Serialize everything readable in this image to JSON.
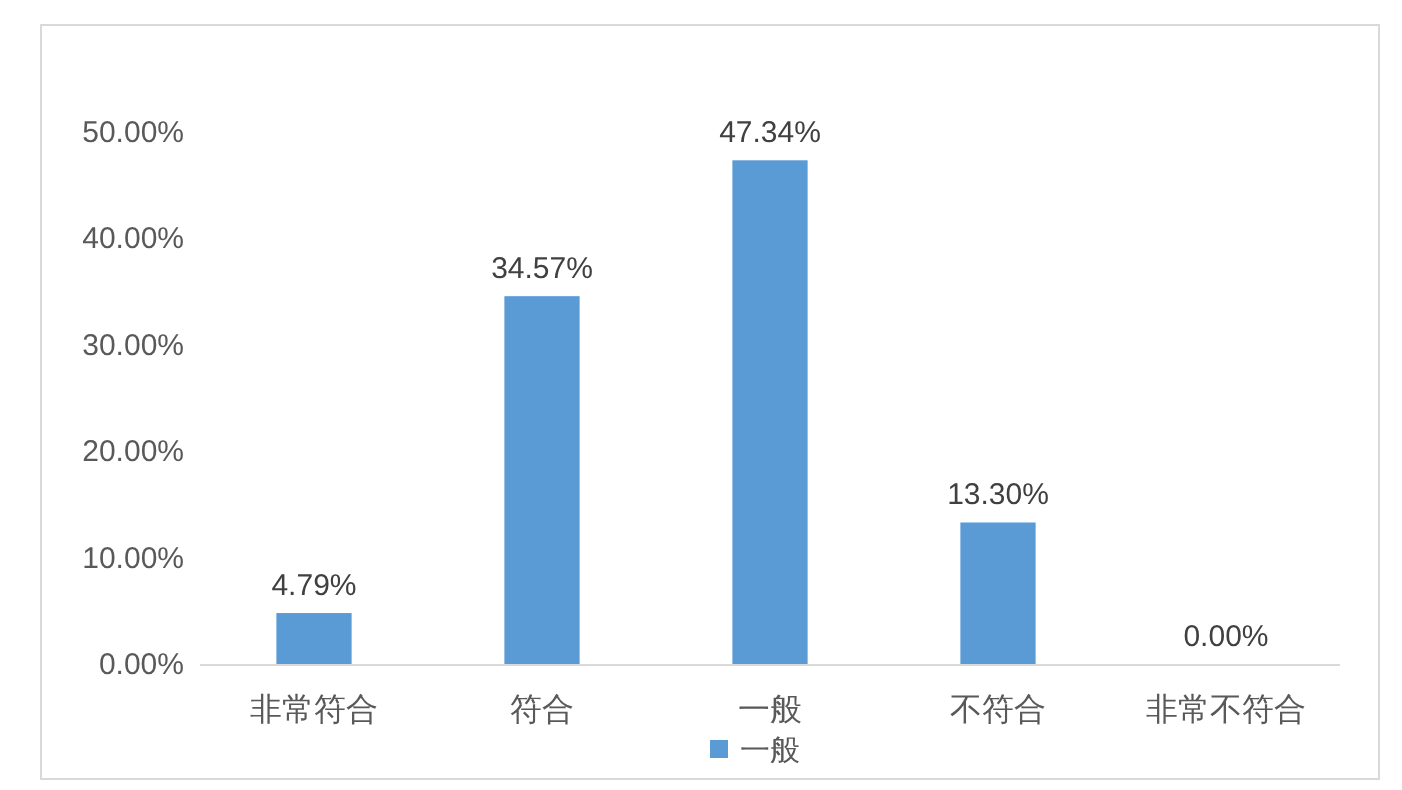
{
  "chart_data": {
    "type": "bar",
    "categories": [
      "非常符合",
      "符合",
      "一般",
      "不符合",
      "非常不符合"
    ],
    "series": [
      {
        "name": "一般",
        "color": "#5b9bd5",
        "values": [
          4.79,
          34.57,
          47.34,
          13.3,
          0.0
        ],
        "value_labels": [
          "4.79%",
          "34.57%",
          "47.34%",
          "13.30%",
          "0.00%"
        ]
      }
    ],
    "ylim": [
      0,
      50
    ],
    "yticks": [
      {
        "value": 0,
        "label": "0.00%"
      },
      {
        "value": 10,
        "label": "10.00%"
      },
      {
        "value": 20,
        "label": "20.00%"
      },
      {
        "value": 30,
        "label": "30.00%"
      },
      {
        "value": 40,
        "label": "40.00%"
      },
      {
        "value": 50,
        "label": "50.00%"
      }
    ],
    "grid": false,
    "legend": "bottom"
  }
}
